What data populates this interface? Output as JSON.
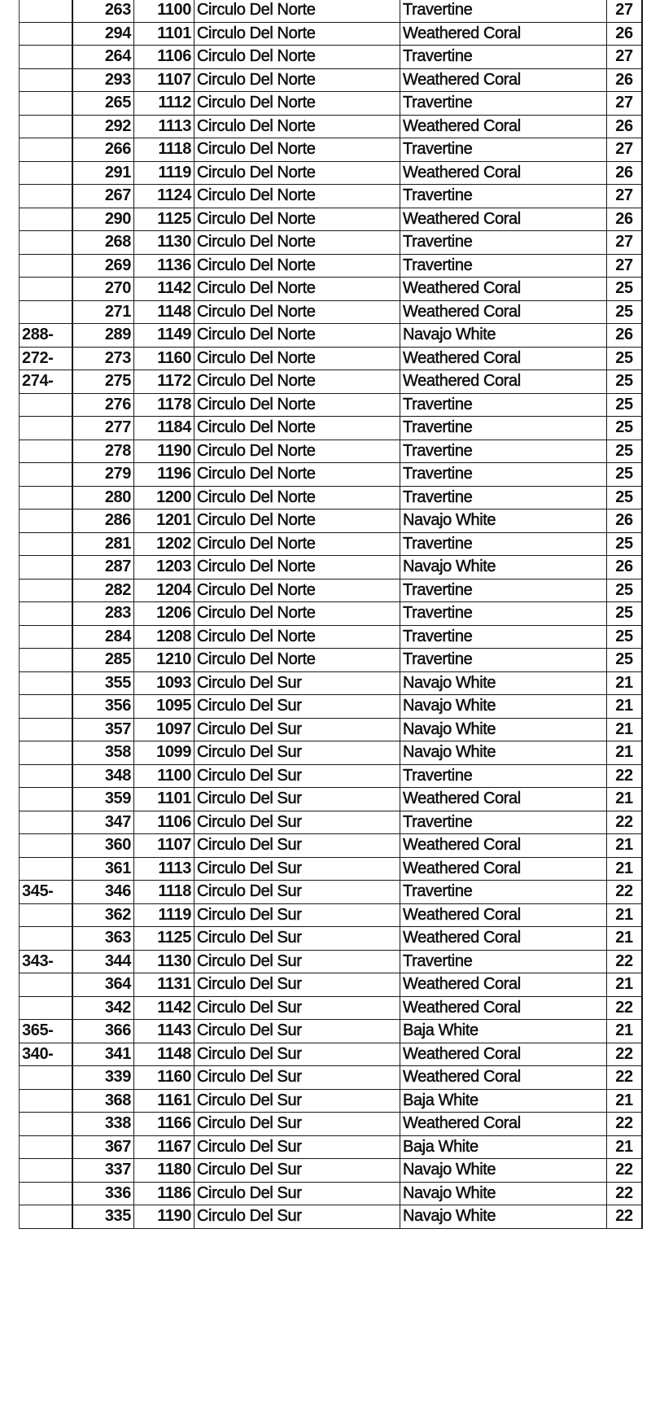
{
  "table": {
    "rows": [
      {
        "ref": "",
        "lot": "263",
        "number": "1100",
        "street": "Circulo Del Norte",
        "color": "Travertine",
        "plan": "27"
      },
      {
        "ref": "",
        "lot": "294",
        "number": "1101",
        "street": "Circulo Del Norte",
        "color": "Weathered Coral",
        "plan": "26"
      },
      {
        "ref": "",
        "lot": "264",
        "number": "1106",
        "street": "Circulo Del Norte",
        "color": "Travertine",
        "plan": "27"
      },
      {
        "ref": "",
        "lot": "293",
        "number": "1107",
        "street": "Circulo Del Norte",
        "color": "Weathered Coral",
        "plan": "26"
      },
      {
        "ref": "",
        "lot": "265",
        "number": "1112",
        "street": "Circulo Del Norte",
        "color": "Travertine",
        "plan": "27"
      },
      {
        "ref": "",
        "lot": "292",
        "number": "1113",
        "street": "Circulo Del Norte",
        "color": "Weathered Coral",
        "plan": "26"
      },
      {
        "ref": "",
        "lot": "266",
        "number": "1118",
        "street": "Circulo Del Norte",
        "color": "Travertine",
        "plan": "27"
      },
      {
        "ref": "",
        "lot": "291",
        "number": "1119",
        "street": "Circulo Del Norte",
        "color": "Weathered Coral",
        "plan": "26"
      },
      {
        "ref": "",
        "lot": "267",
        "number": "1124",
        "street": "Circulo Del Norte",
        "color": "Travertine",
        "plan": "27"
      },
      {
        "ref": "",
        "lot": "290",
        "number": "1125",
        "street": "Circulo Del Norte",
        "color": "Weathered Coral",
        "plan": "26"
      },
      {
        "ref": "",
        "lot": "268",
        "number": "1130",
        "street": "Circulo Del Norte",
        "color": "Travertine",
        "plan": "27"
      },
      {
        "ref": "",
        "lot": "269",
        "number": "1136",
        "street": "Circulo Del Norte",
        "color": "Travertine",
        "plan": "27"
      },
      {
        "ref": "",
        "lot": "270",
        "number": "1142",
        "street": "Circulo Del Norte",
        "color": "Weathered Coral",
        "plan": "25"
      },
      {
        "ref": "",
        "lot": "271",
        "number": "1148",
        "street": "Circulo Del Norte",
        "color": "Weathered Coral",
        "plan": "25"
      },
      {
        "ref": "288-",
        "lot": "289",
        "number": "1149",
        "street": "Circulo Del Norte",
        "color": "Navajo White",
        "plan": "26"
      },
      {
        "ref": "272-",
        "lot": "273",
        "number": "1160",
        "street": "Circulo Del Norte",
        "color": "Weathered Coral",
        "plan": "25"
      },
      {
        "ref": "274-",
        "lot": "275",
        "number": "1172",
        "street": "Circulo Del Norte",
        "color": "Weathered Coral",
        "plan": "25"
      },
      {
        "ref": "",
        "lot": "276",
        "number": "1178",
        "street": "Circulo Del Norte",
        "color": "Travertine",
        "plan": "25"
      },
      {
        "ref": "",
        "lot": "277",
        "number": "1184",
        "street": "Circulo Del Norte",
        "color": "Travertine",
        "plan": "25"
      },
      {
        "ref": "",
        "lot": "278",
        "number": "1190",
        "street": "Circulo Del Norte",
        "color": "Travertine",
        "plan": "25"
      },
      {
        "ref": "",
        "lot": "279",
        "number": "1196",
        "street": "Circulo Del Norte",
        "color": "Travertine",
        "plan": "25"
      },
      {
        "ref": "",
        "lot": "280",
        "number": "1200",
        "street": "Circulo Del Norte",
        "color": "Travertine",
        "plan": "25"
      },
      {
        "ref": "",
        "lot": "286",
        "number": "1201",
        "street": "Circulo Del Norte",
        "color": "Navajo White",
        "plan": "26"
      },
      {
        "ref": "",
        "lot": "281",
        "number": "1202",
        "street": "Circulo Del Norte",
        "color": "Travertine",
        "plan": "25"
      },
      {
        "ref": "",
        "lot": "287",
        "number": "1203",
        "street": "Circulo Del Norte",
        "color": "Navajo White",
        "plan": "26"
      },
      {
        "ref": "",
        "lot": "282",
        "number": "1204",
        "street": "Circulo Del Norte",
        "color": "Travertine",
        "plan": "25"
      },
      {
        "ref": "",
        "lot": "283",
        "number": "1206",
        "street": "Circulo Del Norte",
        "color": "Travertine",
        "plan": "25"
      },
      {
        "ref": "",
        "lot": "284",
        "number": "1208",
        "street": "Circulo Del Norte",
        "color": "Travertine",
        "plan": "25"
      },
      {
        "ref": "",
        "lot": "285",
        "number": "1210",
        "street": "Circulo Del Norte",
        "color": "Travertine",
        "plan": "25"
      },
      {
        "ref": "",
        "lot": "355",
        "number": "1093",
        "street": "Circulo Del Sur",
        "color": "Navajo White",
        "plan": "21"
      },
      {
        "ref": "",
        "lot": "356",
        "number": "1095",
        "street": "Circulo Del Sur",
        "color": "Navajo White",
        "plan": "21"
      },
      {
        "ref": "",
        "lot": "357",
        "number": "1097",
        "street": "Circulo Del Sur",
        "color": "Navajo White",
        "plan": "21"
      },
      {
        "ref": "",
        "lot": "358",
        "number": "1099",
        "street": "Circulo Del Sur",
        "color": "Navajo White",
        "plan": "21"
      },
      {
        "ref": "",
        "lot": "348",
        "number": "1100",
        "street": "Circulo Del Sur",
        "color": "Travertine",
        "plan": "22"
      },
      {
        "ref": "",
        "lot": "359",
        "number": "1101",
        "street": "Circulo Del Sur",
        "color": "Weathered Coral",
        "plan": "21"
      },
      {
        "ref": "",
        "lot": "347",
        "number": "1106",
        "street": "Circulo Del Sur",
        "color": "Travertine",
        "plan": "22"
      },
      {
        "ref": "",
        "lot": "360",
        "number": "1107",
        "street": "Circulo Del Sur",
        "color": "Weathered Coral",
        "plan": "21"
      },
      {
        "ref": "",
        "lot": "361",
        "number": "1113",
        "street": "Circulo Del Sur",
        "color": "Weathered Coral",
        "plan": "21"
      },
      {
        "ref": "345-",
        "lot": "346",
        "number": "1118",
        "street": "Circulo Del Sur",
        "color": "Travertine",
        "plan": "22"
      },
      {
        "ref": "",
        "lot": "362",
        "number": "1119",
        "street": "Circulo Del Sur",
        "color": "Weathered Coral",
        "plan": "21"
      },
      {
        "ref": "",
        "lot": "363",
        "number": "1125",
        "street": "Circulo Del Sur",
        "color": "Weathered Coral",
        "plan": "21"
      },
      {
        "ref": "343-",
        "lot": "344",
        "number": "1130",
        "street": "Circulo Del Sur",
        "color": "Travertine",
        "plan": "22"
      },
      {
        "ref": "",
        "lot": "364",
        "number": "1131",
        "street": "Circulo Del Sur",
        "color": "Weathered Coral",
        "plan": "21"
      },
      {
        "ref": "",
        "lot": "342",
        "number": "1142",
        "street": "Circulo Del Sur",
        "color": "Weathered Coral",
        "plan": "22"
      },
      {
        "ref": "365-",
        "lot": "366",
        "number": "1143",
        "street": "Circulo Del Sur",
        "color": "Baja White",
        "plan": "21"
      },
      {
        "ref": "340-",
        "lot": "341",
        "number": "1148",
        "street": "Circulo Del Sur",
        "color": "Weathered Coral",
        "plan": "22"
      },
      {
        "ref": "",
        "lot": "339",
        "number": "1160",
        "street": "Circulo Del Sur",
        "color": "Weathered Coral",
        "plan": "22"
      },
      {
        "ref": "",
        "lot": "368",
        "number": "1161",
        "street": "Circulo Del Sur",
        "color": "Baja White",
        "plan": "21"
      },
      {
        "ref": "",
        "lot": "338",
        "number": "1166",
        "street": "Circulo Del Sur",
        "color": "Weathered Coral",
        "plan": "22"
      },
      {
        "ref": "",
        "lot": "367",
        "number": "1167",
        "street": "Circulo Del Sur",
        "color": "Baja White",
        "plan": "21"
      },
      {
        "ref": "",
        "lot": "337",
        "number": "1180",
        "street": "Circulo Del Sur",
        "color": "Navajo White",
        "plan": "22"
      },
      {
        "ref": "",
        "lot": "336",
        "number": "1186",
        "street": "Circulo Del Sur",
        "color": "Navajo White",
        "plan": "22"
      },
      {
        "ref": "",
        "lot": "335",
        "number": "1190",
        "street": "Circulo Del Sur",
        "color": "Navajo White",
        "plan": "22"
      }
    ]
  }
}
